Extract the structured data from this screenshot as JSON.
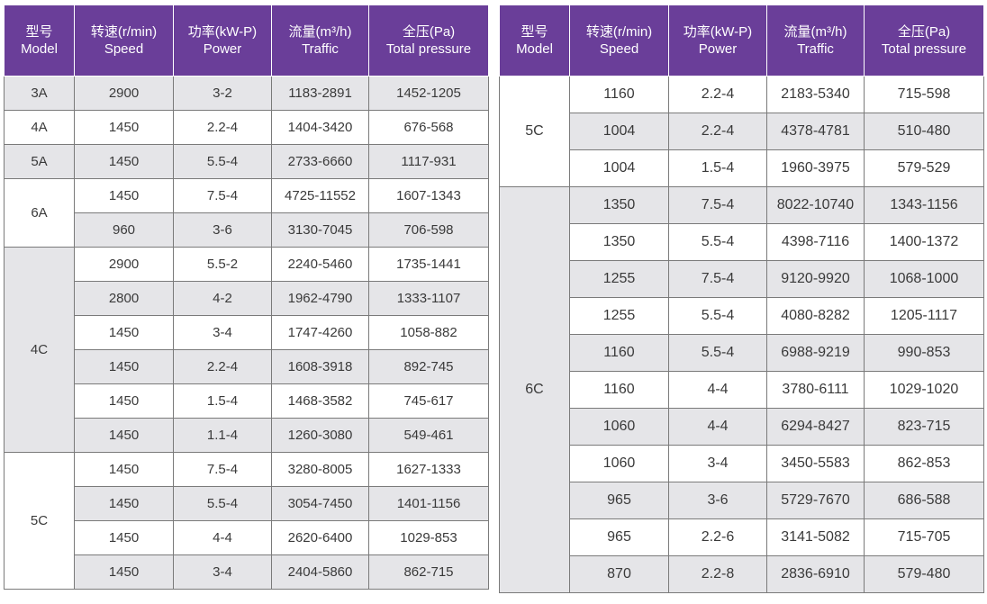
{
  "headers": [
    {
      "zh": "型号",
      "en": "Model"
    },
    {
      "zh": "转速(r/min)",
      "en": "Speed"
    },
    {
      "zh": "功率(kW-P)",
      "en": "Power"
    },
    {
      "zh": "流量(m³/h)",
      "en": "Traffic"
    },
    {
      "zh": "全压(Pa)",
      "en": "Total pressure"
    }
  ],
  "left_table": [
    {
      "model": "3A",
      "rows": [
        {
          "speed": "2900",
          "power": "3-2",
          "traffic": "1183-2891",
          "pressure": "1452-1205"
        }
      ]
    },
    {
      "model": "4A",
      "rows": [
        {
          "speed": "1450",
          "power": "2.2-4",
          "traffic": "1404-3420",
          "pressure": "676-568"
        }
      ]
    },
    {
      "model": "5A",
      "rows": [
        {
          "speed": "1450",
          "power": "5.5-4",
          "traffic": "2733-6660",
          "pressure": "1117-931"
        }
      ]
    },
    {
      "model": "6A",
      "rows": [
        {
          "speed": "1450",
          "power": "7.5-4",
          "traffic": "4725-11552",
          "pressure": "1607-1343"
        },
        {
          "speed": "960",
          "power": "3-6",
          "traffic": "3130-7045",
          "pressure": "706-598"
        }
      ]
    },
    {
      "model": "4C",
      "rows": [
        {
          "speed": "2900",
          "power": "5.5-2",
          "traffic": "2240-5460",
          "pressure": "1735-1441"
        },
        {
          "speed": "2800",
          "power": "4-2",
          "traffic": "1962-4790",
          "pressure": "1333-1107"
        },
        {
          "speed": "1450",
          "power": "3-4",
          "traffic": "1747-4260",
          "pressure": "1058-882"
        },
        {
          "speed": "1450",
          "power": "2.2-4",
          "traffic": "1608-3918",
          "pressure": "892-745"
        },
        {
          "speed": "1450",
          "power": "1.5-4",
          "traffic": "1468-3582",
          "pressure": "745-617"
        },
        {
          "speed": "1450",
          "power": "1.1-4",
          "traffic": "1260-3080",
          "pressure": "549-461"
        }
      ]
    },
    {
      "model": "5C",
      "rows": [
        {
          "speed": "1450",
          "power": "7.5-4",
          "traffic": "3280-8005",
          "pressure": "1627-1333"
        },
        {
          "speed": "1450",
          "power": "5.5-4",
          "traffic": "3054-7450",
          "pressure": "1401-1156"
        },
        {
          "speed": "1450",
          "power": "4-4",
          "traffic": "2620-6400",
          "pressure": "1029-853"
        },
        {
          "speed": "1450",
          "power": "3-4",
          "traffic": "2404-5860",
          "pressure": "862-715"
        }
      ]
    }
  ],
  "right_table": [
    {
      "model": "5C",
      "rows": [
        {
          "speed": "1160",
          "power": "2.2-4",
          "traffic": "2183-5340",
          "pressure": "715-598"
        },
        {
          "speed": "1004",
          "power": "2.2-4",
          "traffic": "4378-4781",
          "pressure": "510-480"
        },
        {
          "speed": "1004",
          "power": "1.5-4",
          "traffic": "1960-3975",
          "pressure": "579-529"
        }
      ]
    },
    {
      "model": "6C",
      "rows": [
        {
          "speed": "1350",
          "power": "7.5-4",
          "traffic": "8022-10740",
          "pressure": "1343-1156"
        },
        {
          "speed": "1350",
          "power": "5.5-4",
          "traffic": "4398-7116",
          "pressure": "1400-1372"
        },
        {
          "speed": "1255",
          "power": "7.5-4",
          "traffic": "9120-9920",
          "pressure": "1068-1000"
        },
        {
          "speed": "1255",
          "power": "5.5-4",
          "traffic": "4080-8282",
          "pressure": "1205-1117"
        },
        {
          "speed": "1160",
          "power": "5.5-4",
          "traffic": "6988-9219",
          "pressure": "990-853"
        },
        {
          "speed": "1160",
          "power": "4-4",
          "traffic": "3780-6111",
          "pressure": "1029-1020"
        },
        {
          "speed": "1060",
          "power": "4-4",
          "traffic": "6294-8427",
          "pressure": "823-715"
        },
        {
          "speed": "1060",
          "power": "3-4",
          "traffic": "3450-5583",
          "pressure": "862-853"
        },
        {
          "speed": "965",
          "power": "3-6",
          "traffic": "5729-7670",
          "pressure": "686-588"
        },
        {
          "speed": "965",
          "power": "2.2-6",
          "traffic": "3141-5082",
          "pressure": "715-705"
        },
        {
          "speed": "870",
          "power": "2.2-8",
          "traffic": "2836-6910",
          "pressure": "579-480"
        }
      ]
    }
  ]
}
